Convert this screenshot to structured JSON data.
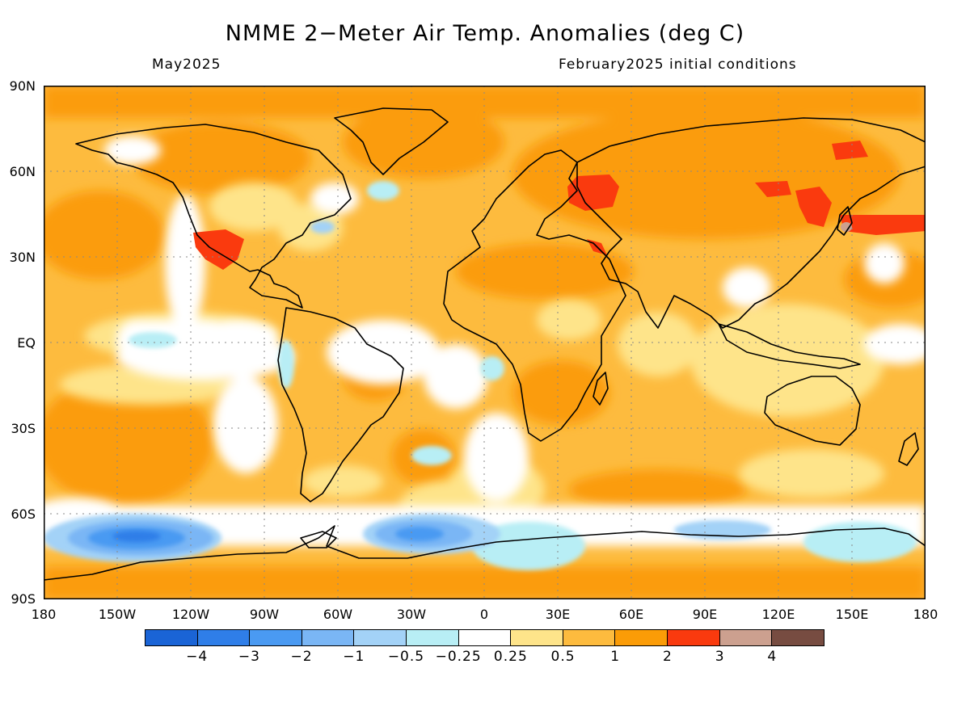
{
  "title": "NMME 2−Meter Air Temp. Anomalies (deg C)",
  "target_month": "May2025",
  "initial_conditions": "February2025 initial conditions",
  "lat_labels": [
    "90N",
    "60N",
    "30N",
    "EQ",
    "30S",
    "60S",
    "90S"
  ],
  "lon_labels": [
    "180",
    "150W",
    "120W",
    "90W",
    "60W",
    "30W",
    "0",
    "30E",
    "60E",
    "90E",
    "120E",
    "150E",
    "180"
  ],
  "legend": {
    "colors": [
      "#1a64d6",
      "#2f7ee8",
      "#4a9af2",
      "#7ab6f5",
      "#a3d2f7",
      "#b8eef5",
      "#ffffff",
      "#fee48a",
      "#fdbb3e",
      "#fb9c07",
      "#fa3a0e",
      "#cca08f",
      "#774c41"
    ],
    "labels": [
      "−4",
      "−3",
      "−2",
      "−1",
      "−0.5",
      "−0.25",
      "0.25",
      "0.5",
      "1",
      "2",
      "3",
      "4"
    ]
  },
  "map": {
    "ocean_base_color": "#fdbb3e",
    "coastline_color": "#000000",
    "gridline_style": "dotted"
  }
}
